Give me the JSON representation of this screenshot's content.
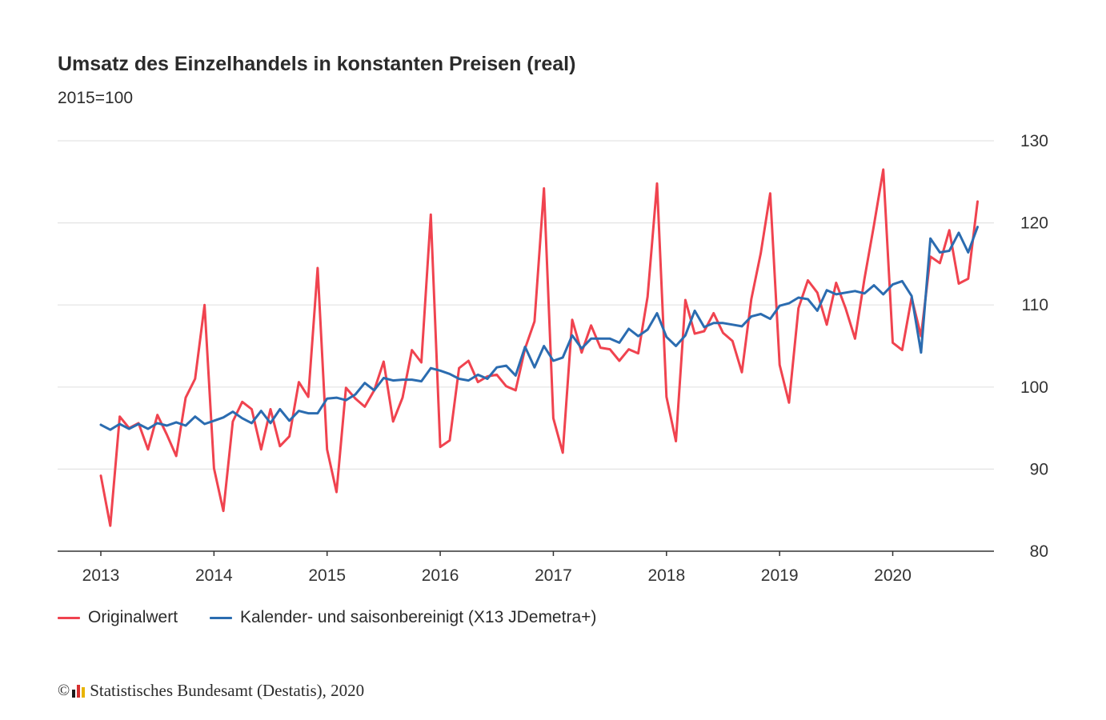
{
  "header": {
    "title": "Umsatz des Einzelhandels in konstanten Preisen (real)",
    "subtitle": "2015=100"
  },
  "legend": {
    "items": [
      {
        "label": "Originalwert",
        "color": "#f0434f"
      },
      {
        "label": "Kalender- und saisonbereinigt (X13 JDemetra+)",
        "color": "#2b6cb0"
      }
    ]
  },
  "footer": {
    "text": "Statistisches Bundesamt (Destatis), 2020",
    "logo_colors": [
      "#1a1a1a",
      "#d62f2f",
      "#e8b400"
    ]
  },
  "chart_data": {
    "type": "line",
    "x_start": "2013-01",
    "x_ticks": [
      "2013",
      "2014",
      "2015",
      "2016",
      "2017",
      "2018",
      "2019",
      "2020"
    ],
    "ylim": [
      80,
      130
    ],
    "y_ticks": [
      80,
      90,
      100,
      110,
      120,
      130
    ],
    "y_axis_position": "right",
    "grid": true,
    "legend_position": "bottom-left",
    "series": [
      {
        "name": "Originalwert",
        "color": "#f0434f",
        "values": [
          89.2,
          83.1,
          96.4,
          95.0,
          95.6,
          92.4,
          96.6,
          94.2,
          91.6,
          98.7,
          101.0,
          110.0,
          90.1,
          84.9,
          95.8,
          98.2,
          97.3,
          92.4,
          97.3,
          92.8,
          94.0,
          100.6,
          98.8,
          114.5,
          92.4,
          87.2,
          99.9,
          98.6,
          97.6,
          99.6,
          103.1,
          95.8,
          98.7,
          104.5,
          103.0,
          121.0,
          92.7,
          93.5,
          102.3,
          103.2,
          100.6,
          101.3,
          101.5,
          100.1,
          99.6,
          104.7,
          108.0,
          124.2,
          96.2,
          92.0,
          108.2,
          104.2,
          107.5,
          104.8,
          104.6,
          103.2,
          104.6,
          104.1,
          111.0,
          124.8,
          98.8,
          93.4,
          110.6,
          106.5,
          106.8,
          109.0,
          106.6,
          105.6,
          101.8,
          110.7,
          116.3,
          123.6,
          102.7,
          98.1,
          109.6,
          113.0,
          111.5,
          107.6,
          112.7,
          109.6,
          105.9,
          113.2,
          119.7,
          126.5,
          105.4,
          104.5,
          110.9,
          106.2,
          115.9,
          115.1,
          119.1,
          112.6,
          113.2,
          122.6
        ]
      },
      {
        "name": "Kalender- und saisonbereinigt (X13 JDemetra+)",
        "color": "#2b6cb0",
        "values": [
          95.4,
          94.8,
          95.5,
          94.9,
          95.5,
          94.9,
          95.6,
          95.3,
          95.7,
          95.3,
          96.4,
          95.5,
          95.9,
          96.3,
          97.0,
          96.2,
          95.6,
          97.1,
          95.6,
          97.3,
          95.9,
          97.1,
          96.8,
          96.8,
          98.6,
          98.7,
          98.4,
          99.1,
          100.5,
          99.6,
          101.1,
          100.8,
          100.9,
          100.9,
          100.7,
          102.3,
          102.0,
          101.6,
          101.0,
          100.8,
          101.5,
          101.0,
          102.4,
          102.6,
          101.4,
          104.9,
          102.4,
          105.0,
          103.2,
          103.6,
          106.3,
          104.7,
          105.9,
          105.9,
          105.9,
          105.4,
          107.1,
          106.2,
          107.0,
          109.0,
          106.1,
          105.0,
          106.3,
          109.3,
          107.3,
          107.8,
          107.8,
          107.6,
          107.4,
          108.6,
          108.9,
          108.3,
          109.9,
          110.2,
          110.9,
          110.7,
          109.3,
          111.8,
          111.3,
          111.5,
          111.7,
          111.4,
          112.4,
          111.3,
          112.5,
          112.9,
          111.1,
          104.2,
          118.1,
          116.4,
          116.6,
          118.8,
          116.4,
          119.5
        ]
      }
    ]
  }
}
